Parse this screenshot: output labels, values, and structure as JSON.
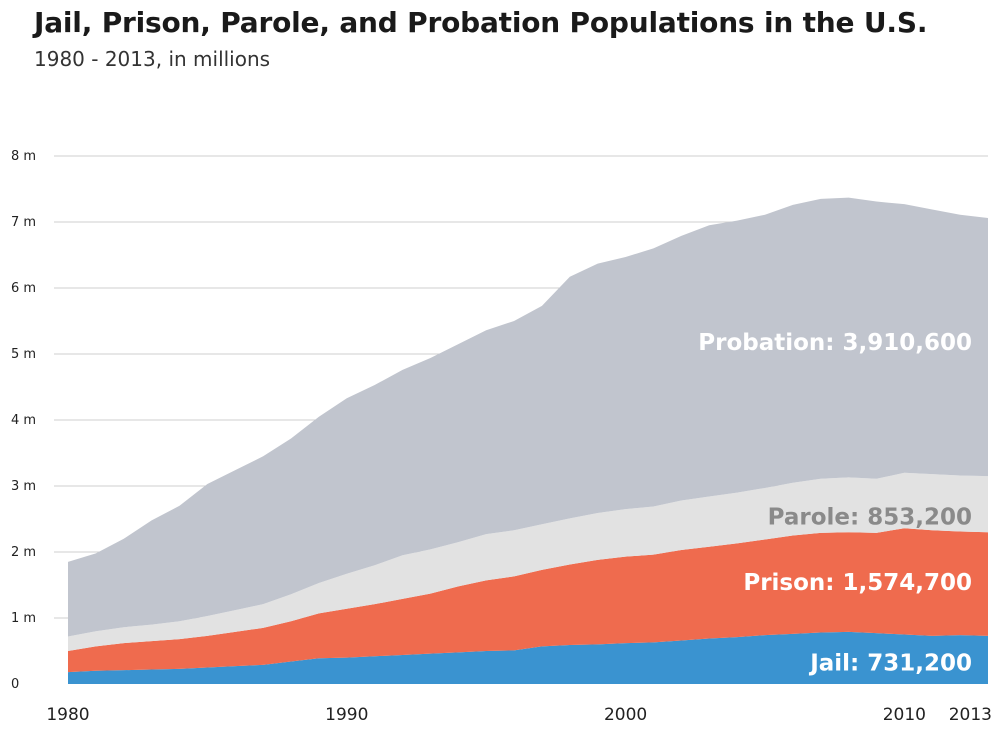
{
  "header": {
    "title": "Jail, Prison, Parole, and Probation Populations in the U.S.",
    "subtitle": "1980 - 2013, in millions"
  },
  "chart_data": {
    "type": "area",
    "stacked": true,
    "title": "Jail, Prison, Parole, and Probation Populations in the U.S.",
    "subtitle": "1980 - 2013, in millions",
    "xlabel": "",
    "ylabel": "",
    "xlim": [
      1980,
      2013
    ],
    "ylim": [
      0,
      8
    ],
    "grid": true,
    "x": [
      1980,
      1981,
      1982,
      1983,
      1984,
      1985,
      1986,
      1987,
      1988,
      1989,
      1990,
      1991,
      1992,
      1993,
      1994,
      1995,
      1996,
      1997,
      1998,
      1999,
      2000,
      2001,
      2002,
      2003,
      2004,
      2005,
      2006,
      2007,
      2008,
      2009,
      2010,
      2011,
      2012,
      2013
    ],
    "x_ticks": [
      {
        "value": 1980,
        "label": "1980"
      },
      {
        "value": 1990,
        "label": "1990"
      },
      {
        "value": 2000,
        "label": "2000"
      },
      {
        "value": 2010,
        "label": "2010"
      },
      {
        "value": 2013,
        "label": "2013"
      }
    ],
    "y_ticks": [
      {
        "value": 0,
        "label": "0"
      },
      {
        "value": 1,
        "label": "1 m"
      },
      {
        "value": 2,
        "label": "2 m"
      },
      {
        "value": 3,
        "label": "3 m"
      },
      {
        "value": 4,
        "label": "4 m"
      },
      {
        "value": 5,
        "label": "5 m"
      },
      {
        "value": 6,
        "label": "6 m"
      },
      {
        "value": 7,
        "label": "7 m"
      },
      {
        "value": 8,
        "label": "8 m"
      }
    ],
    "series": [
      {
        "name": "Jail",
        "color": "#3a93d0",
        "label_color": "#ffffff",
        "label": "Jail: 731,200",
        "values": [
          0.18,
          0.2,
          0.21,
          0.22,
          0.23,
          0.25,
          0.27,
          0.29,
          0.34,
          0.39,
          0.4,
          0.42,
          0.44,
          0.46,
          0.48,
          0.5,
          0.51,
          0.57,
          0.59,
          0.6,
          0.62,
          0.63,
          0.66,
          0.69,
          0.71,
          0.74,
          0.76,
          0.78,
          0.79,
          0.77,
          0.75,
          0.73,
          0.74,
          0.73
        ]
      },
      {
        "name": "Prison",
        "color": "#ef6b4e",
        "label_color": "#ffffff",
        "label": "Prison: 1,574,700",
        "values": [
          0.32,
          0.37,
          0.41,
          0.43,
          0.45,
          0.48,
          0.52,
          0.56,
          0.61,
          0.68,
          0.74,
          0.79,
          0.85,
          0.91,
          1.0,
          1.07,
          1.12,
          1.16,
          1.22,
          1.28,
          1.31,
          1.33,
          1.37,
          1.39,
          1.42,
          1.45,
          1.49,
          1.51,
          1.51,
          1.52,
          1.61,
          1.6,
          1.57,
          1.57
        ]
      },
      {
        "name": "Parole",
        "color": "#e2e2e2",
        "label_color": "#8a8a8a",
        "label": "Parole: 853,200",
        "values": [
          0.22,
          0.23,
          0.24,
          0.25,
          0.27,
          0.3,
          0.33,
          0.36,
          0.41,
          0.46,
          0.53,
          0.59,
          0.66,
          0.67,
          0.67,
          0.7,
          0.7,
          0.69,
          0.7,
          0.71,
          0.72,
          0.73,
          0.75,
          0.76,
          0.77,
          0.78,
          0.8,
          0.82,
          0.83,
          0.82,
          0.84,
          0.85,
          0.85,
          0.85
        ]
      },
      {
        "name": "Probation",
        "color": "#c1c5ce",
        "label_color": "#ffffff",
        "label": "Probation: 3,910,600",
        "values": [
          1.13,
          1.18,
          1.34,
          1.58,
          1.75,
          2.0,
          2.12,
          2.24,
          2.36,
          2.52,
          2.66,
          2.73,
          2.81,
          2.9,
          3.0,
          3.09,
          3.17,
          3.31,
          3.66,
          3.78,
          3.82,
          3.91,
          4.01,
          4.11,
          4.12,
          4.14,
          4.21,
          4.24,
          4.24,
          4.2,
          4.07,
          4.01,
          3.95,
          3.91
        ]
      }
    ]
  }
}
